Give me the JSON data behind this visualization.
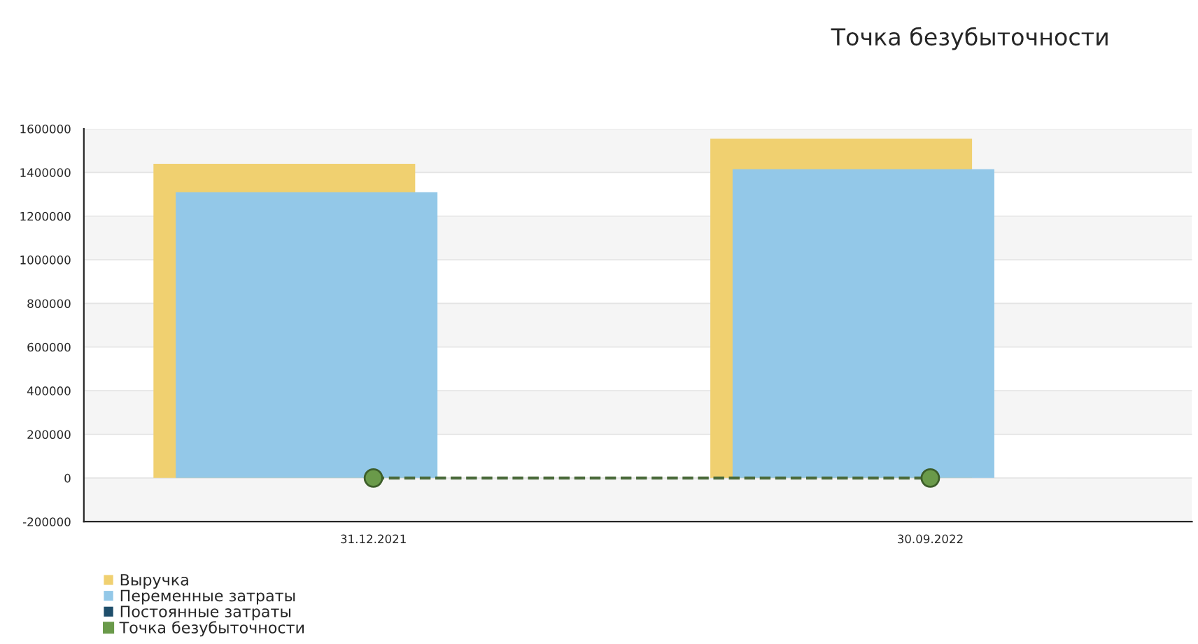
{
  "chart_data": {
    "type": "bar",
    "title": "Точка безубыточности",
    "categories": [
      "31.12.2021",
      "30.09.2022"
    ],
    "series": [
      {
        "name": "Выручка",
        "color": "#f0d070",
        "values": [
          1440000,
          1555000
        ]
      },
      {
        "name": "Переменные затраты",
        "color": "#93c8e8",
        "values": [
          1310000,
          1415000
        ]
      },
      {
        "name": "Постоянные затраты",
        "color": "#1f4e6b",
        "values": [
          null,
          null
        ]
      },
      {
        "name": "Точка безубыточности",
        "type": "line",
        "color": "#6a9a4a",
        "values": [
          0,
          0
        ],
        "marker": "circle",
        "line_style": "dashed"
      }
    ],
    "ylim": [
      -200000,
      1600000
    ],
    "yticks": [
      -200000,
      0,
      200000,
      400000,
      600000,
      800000,
      1000000,
      1200000,
      1400000,
      1600000
    ],
    "grid": "y",
    "legend": "bottom left"
  }
}
